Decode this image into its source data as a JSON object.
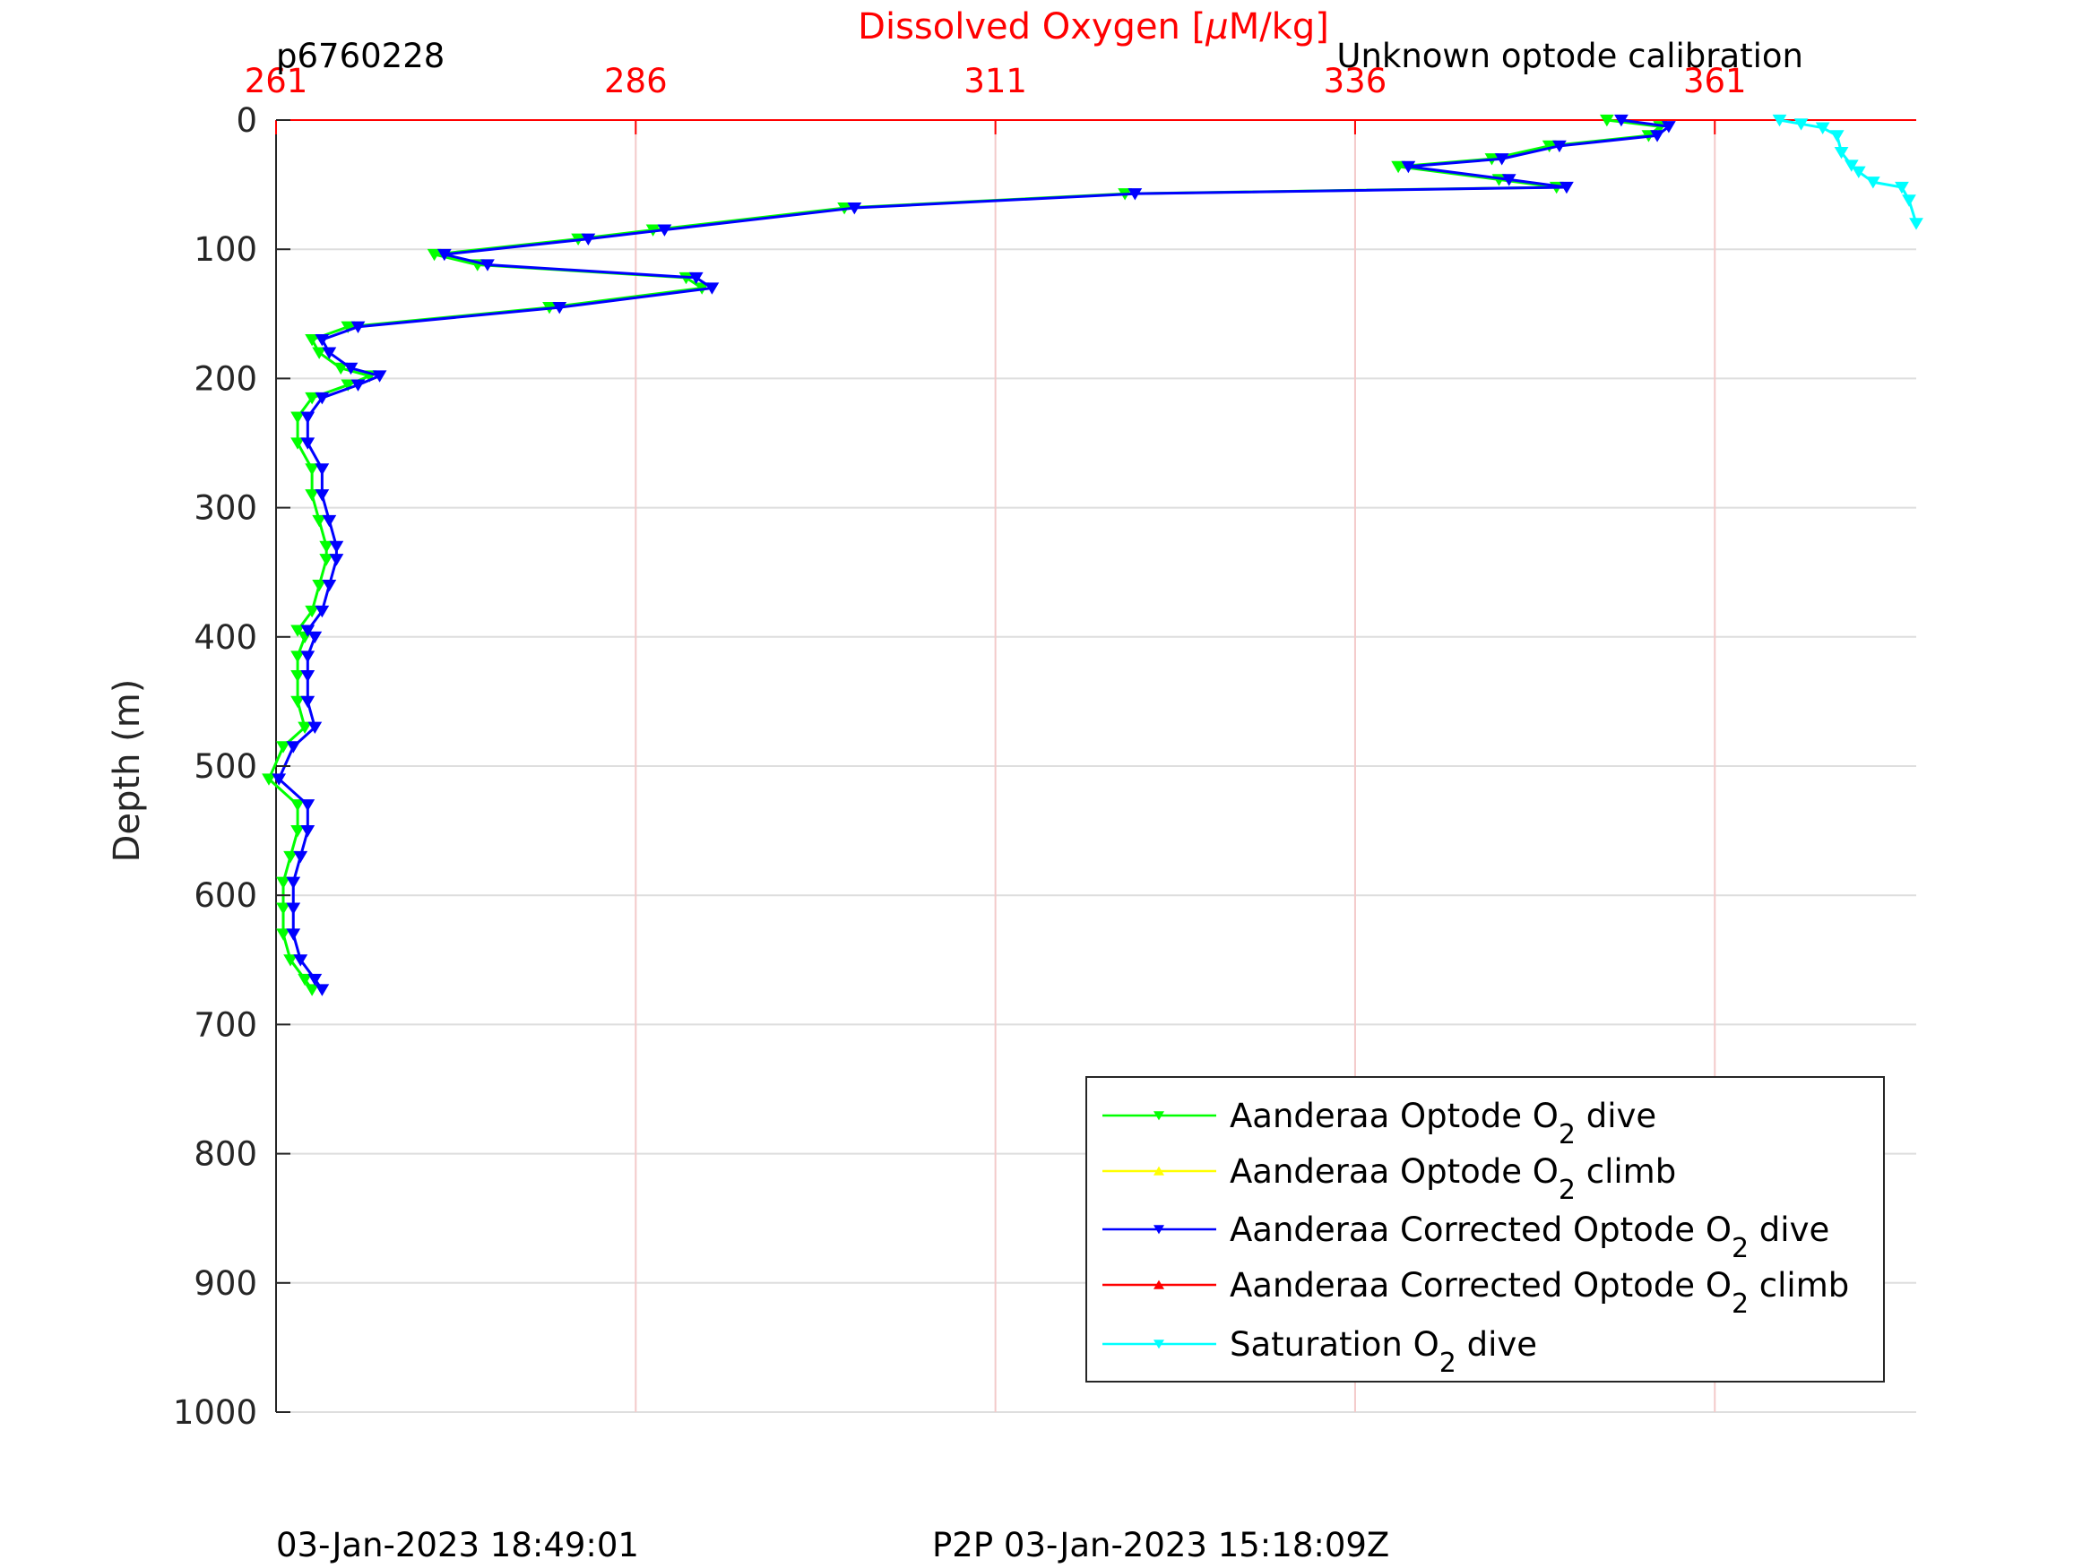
{
  "chart_data": {
    "type": "line",
    "title": "Dissolved Oxygen [μM/kg]",
    "title_parts": [
      "Dissolved Oxygen [",
      "μ",
      "M/kg]"
    ],
    "top_left_label": "p6760228",
    "top_right_label": "Unknown optode calibration",
    "ylabel": "Depth (m)",
    "footer_left": "03-Jan-2023 18:49:01",
    "footer_center": "P2P 03-Jan-2023 15:18:09Z",
    "xlim": [
      261,
      375
    ],
    "ylim": [
      0,
      1000
    ],
    "y_reversed": true,
    "x_axis_position": "top",
    "grid": true,
    "xticks": [
      261,
      286,
      311,
      336,
      361
    ],
    "xtick_labels": [
      "261",
      "286",
      "311",
      "336",
      "361"
    ],
    "yticks": [
      0,
      100,
      200,
      300,
      400,
      500,
      600,
      700,
      800,
      900,
      1000
    ],
    "ytick_labels": [
      "0",
      "100",
      "200",
      "300",
      "400",
      "500",
      "600",
      "700",
      "800",
      "900",
      "1000"
    ],
    "colors": {
      "x_axis": "#ff0000",
      "optode_dive": "#00ff00",
      "optode_climb": "#ffff00",
      "corrected_dive": "#0000ff",
      "corrected_climb": "#ff0000",
      "saturation_dive": "#00ffff"
    },
    "legend": {
      "position": "bottom-right",
      "entries": [
        {
          "prefix": "Aanderaa Optode O",
          "sub": "2",
          "suffix": " dive",
          "color": "#00ff00",
          "marker": "down"
        },
        {
          "prefix": "Aanderaa Optode O",
          "sub": "2",
          "suffix": " climb",
          "color": "#ffff00",
          "marker": "up"
        },
        {
          "prefix": "Aanderaa Corrected Optode O",
          "sub": "2",
          "suffix": " dive",
          "color": "#0000ff",
          "marker": "down"
        },
        {
          "prefix": "Aanderaa Corrected Optode O",
          "sub": "2",
          "suffix": " climb",
          "color": "#ff0000",
          "marker": "up"
        },
        {
          "prefix": "Saturation O",
          "sub": "2",
          "suffix": " dive",
          "color": "#00ffff",
          "marker": "down"
        }
      ]
    },
    "series": [
      {
        "name": "Aanderaa Optode O2 dive",
        "color": "#00ff00",
        "marker": "down",
        "x": [
          353.5,
          357.2,
          356.4,
          349.5,
          345.5,
          339.0,
          346.0,
          350.0,
          320.0,
          300.5,
          287.2,
          282.0,
          272.0,
          275.0,
          289.5,
          290.6,
          280.0,
          266.0,
          263.5,
          264.0,
          265.5,
          267.5,
          266.0,
          263.5,
          262.5,
          262.5,
          263.5,
          263.5,
          264.0,
          264.5,
          264.5,
          264.0,
          263.5,
          262.5,
          263.0,
          262.5,
          262.5,
          262.5,
          263.0,
          261.5,
          260.5,
          262.5,
          262.5,
          262.0,
          261.5,
          261.5,
          261.5,
          262.0,
          263.0,
          263.5
        ],
        "y": [
          0,
          5,
          12,
          20,
          30,
          36,
          46,
          52,
          57,
          68,
          85,
          92,
          104,
          112,
          122,
          130,
          145,
          160,
          170,
          180,
          192,
          198,
          205,
          215,
          230,
          250,
          270,
          290,
          310,
          330,
          340,
          360,
          380,
          395,
          400,
          415,
          430,
          450,
          470,
          485,
          510,
          530,
          550,
          570,
          590,
          610,
          630,
          650,
          665,
          673
        ]
      },
      {
        "name": "Aanderaa Optode O2 climb",
        "color": "#ffff00",
        "marker": "up",
        "x": [],
        "y": []
      },
      {
        "name": "Aanderaa Corrected Optode O2 dive",
        "color": "#0000ff",
        "marker": "down",
        "x": [
          354.5,
          357.8,
          357.0,
          350.2,
          346.2,
          339.7,
          346.7,
          350.7,
          320.7,
          301.2,
          288.0,
          282.7,
          272.7,
          275.7,
          290.2,
          291.3,
          280.7,
          266.7,
          264.2,
          264.7,
          266.2,
          268.2,
          266.7,
          264.2,
          263.2,
          263.2,
          264.2,
          264.2,
          264.7,
          265.2,
          265.2,
          264.7,
          264.2,
          263.2,
          263.7,
          263.2,
          263.2,
          263.2,
          263.7,
          262.2,
          261.2,
          263.2,
          263.2,
          262.7,
          262.2,
          262.2,
          262.2,
          262.7,
          263.7,
          264.2
        ],
        "y": [
          0,
          5,
          12,
          20,
          30,
          36,
          46,
          52,
          57,
          68,
          85,
          92,
          104,
          112,
          122,
          130,
          145,
          160,
          170,
          180,
          192,
          198,
          205,
          215,
          230,
          250,
          270,
          290,
          310,
          330,
          340,
          360,
          380,
          395,
          400,
          415,
          430,
          450,
          470,
          485,
          510,
          530,
          550,
          570,
          590,
          610,
          630,
          650,
          665,
          673
        ]
      },
      {
        "name": "Aanderaa Corrected Optode O2 climb",
        "color": "#ff0000",
        "marker": "up",
        "x": [],
        "y": []
      },
      {
        "name": "Saturation O2 dive",
        "color": "#00ffff",
        "marker": "down",
        "x": [
          365.5,
          367.0,
          368.5,
          369.5,
          369.8,
          370.5,
          371.0,
          372.0,
          374.0,
          374.5,
          375.0
        ],
        "y": [
          0,
          3,
          6,
          12,
          25,
          35,
          40,
          48,
          52,
          62,
          80
        ]
      }
    ]
  }
}
